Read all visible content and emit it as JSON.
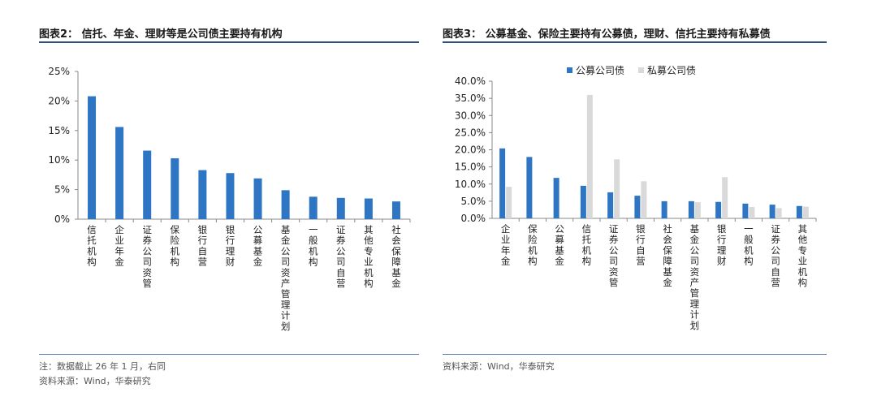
{
  "colors": {
    "public": "#2e75c4",
    "private": "#d9d9d9",
    "rule": "#2f4f7c"
  },
  "left": {
    "title": "图表2： 信托、年金、理财等是公司债主要持有机构",
    "note": "注：数据截止 26 年 1 月，右同",
    "source": "资料来源：Wind，华泰研究"
  },
  "right": {
    "title": "图表3： 公募基金、保险主要持有公募债，理财、信托主要持有私募债",
    "source": "资料来源：Wind，华泰研究"
  },
  "chart_data": [
    {
      "type": "bar",
      "categories": [
        "信托机构",
        "企业年金",
        "证券公司资管",
        "保险机构",
        "银行自营",
        "银行理财",
        "公募基金",
        "基金公司资产管理计划",
        "一般机构",
        "证券公司自营",
        "其他专业机构",
        "社会保障基金"
      ],
      "values": [
        20.8,
        15.6,
        11.6,
        10.3,
        8.3,
        7.8,
        6.9,
        4.9,
        3.8,
        3.6,
        3.5,
        3.0
      ],
      "yunit": "%",
      "yticks": [
        "0%",
        "5%",
        "10%",
        "15%",
        "20%",
        "25%"
      ],
      "ylim": [
        0,
        25
      ],
      "grid": false,
      "legend": "none"
    },
    {
      "type": "bar",
      "categories": [
        "企业年金",
        "保险机构",
        "公募基金",
        "信托机构",
        "证券公司资管",
        "银行自营",
        "社会保障基金",
        "基金公司资产管理计划",
        "银行理财",
        "一般机构",
        "证券公司自营",
        "其他专业机构"
      ],
      "series": [
        {
          "name": "公募公司债",
          "values": [
            20.4,
            17.9,
            11.8,
            9.5,
            7.6,
            6.6,
            5.0,
            5.0,
            4.8,
            4.3,
            4.0,
            3.6
          ]
        },
        {
          "name": "私募公司债",
          "values": [
            9.2,
            0,
            0,
            36.0,
            17.2,
            10.8,
            0,
            4.7,
            12.0,
            3.3,
            3.0,
            3.4
          ]
        }
      ],
      "yticks": [
        "0.0%",
        "5.0%",
        "10.0%",
        "15.0%",
        "20.0%",
        "25.0%",
        "30.0%",
        "35.0%",
        "40.0%"
      ],
      "ylim": [
        0,
        40
      ],
      "grid": false,
      "legend": "top-left"
    }
  ]
}
